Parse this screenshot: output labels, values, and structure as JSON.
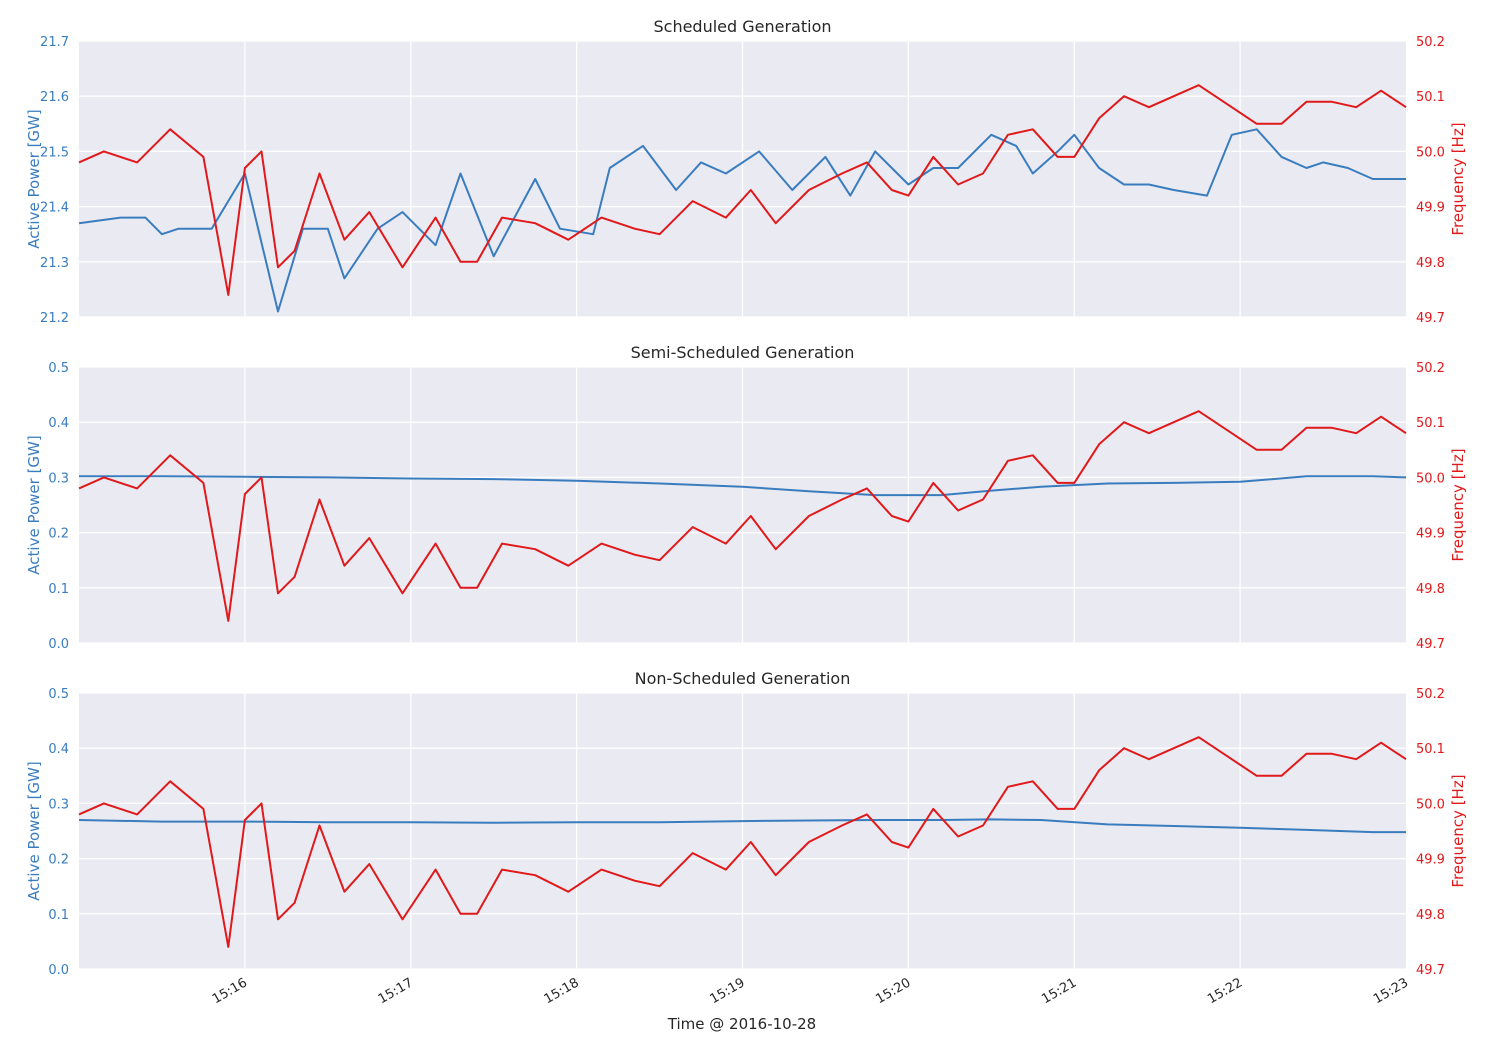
{
  "colors": {
    "power": "#3a7dbf",
    "frequency": "#e0191b",
    "plot_bg": "#eaeaf2",
    "grid": "#ffffff",
    "text": "#262626"
  },
  "xlabel": "Time @ 2016-10-28",
  "x_ticks": [
    "15:16",
    "15:17",
    "15:18",
    "15:19",
    "15:20",
    "15:21",
    "15:22",
    "15:23"
  ],
  "chart_data": [
    {
      "type": "line",
      "title": "Scheduled Generation",
      "ylabel": "Active Power [GW]",
      "y2label": "Frequency [Hz]",
      "ylim": [
        21.2,
        21.7
      ],
      "y2lim": [
        49.7,
        50.2
      ],
      "y_ticks": [
        "21.2",
        "21.3",
        "21.4",
        "21.5",
        "21.6",
        "21.7"
      ],
      "y2_ticks": [
        "49.7",
        "49.8",
        "49.9",
        "50.0",
        "50.1",
        "50.2"
      ],
      "x_range_minutes": [
        0,
        8
      ],
      "grid": true,
      "series": [
        {
          "axis": "left",
          "x": [
            0.0,
            0.25,
            0.4,
            0.5,
            0.6,
            0.8,
            1.0,
            1.2,
            1.35,
            1.5,
            1.6,
            1.8,
            1.95,
            2.15,
            2.3,
            2.5,
            2.75,
            2.9,
            3.1,
            3.2,
            3.4,
            3.6,
            3.75,
            3.9,
            4.1,
            4.3,
            4.5,
            4.65,
            4.8,
            5.0,
            5.15,
            5.3,
            5.5,
            5.65,
            5.75,
            5.9,
            6.0,
            6.15,
            6.3,
            6.45,
            6.6,
            6.8,
            6.95,
            7.1,
            7.25,
            7.4,
            7.5,
            7.65,
            7.8,
            7.95,
            8.0
          ],
          "values": [
            21.37,
            21.38,
            21.38,
            21.35,
            21.36,
            21.36,
            21.46,
            21.21,
            21.36,
            21.36,
            21.27,
            21.36,
            21.39,
            21.33,
            21.46,
            21.31,
            21.45,
            21.36,
            21.35,
            21.47,
            21.51,
            21.43,
            21.48,
            21.46,
            21.5,
            21.43,
            21.49,
            21.42,
            21.5,
            21.44,
            21.47,
            21.47,
            21.53,
            21.51,
            21.46,
            21.5,
            21.53,
            21.47,
            21.44,
            21.44,
            21.43,
            21.42,
            21.53,
            21.54,
            21.49,
            21.47,
            21.48,
            21.47,
            21.45,
            21.45,
            21.45
          ]
        },
        {
          "axis": "right",
          "x": [
            0.0,
            0.15,
            0.35,
            0.55,
            0.75,
            0.9,
            1.0,
            1.1,
            1.2,
            1.3,
            1.45,
            1.6,
            1.75,
            1.95,
            2.15,
            2.3,
            2.4,
            2.55,
            2.75,
            2.95,
            3.15,
            3.35,
            3.5,
            3.7,
            3.9,
            4.05,
            4.2,
            4.4,
            4.6,
            4.75,
            4.9,
            5.0,
            5.15,
            5.3,
            5.45,
            5.6,
            5.75,
            5.9,
            6.0,
            6.15,
            6.3,
            6.45,
            6.6,
            6.75,
            6.9,
            7.1,
            7.25,
            7.4,
            7.55,
            7.7,
            7.85,
            8.0
          ],
          "values": [
            49.98,
            50.0,
            49.98,
            50.04,
            49.99,
            49.74,
            49.97,
            50.0,
            49.79,
            49.82,
            49.96,
            49.84,
            49.89,
            49.79,
            49.88,
            49.8,
            49.8,
            49.88,
            49.87,
            49.84,
            49.88,
            49.86,
            49.85,
            49.91,
            49.88,
            49.93,
            49.87,
            49.93,
            49.96,
            49.98,
            49.93,
            49.92,
            49.99,
            49.94,
            49.96,
            50.03,
            50.04,
            49.99,
            49.99,
            50.06,
            50.1,
            50.08,
            50.1,
            50.12,
            50.09,
            50.05,
            50.05,
            50.09,
            50.09,
            50.08,
            50.11,
            50.08
          ]
        }
      ]
    },
    {
      "type": "line",
      "title": "Semi-Scheduled Generation",
      "ylabel": "Active Power [GW]",
      "y2label": "Frequency [Hz]",
      "ylim": [
        0.0,
        0.5
      ],
      "y2lim": [
        49.7,
        50.2
      ],
      "y_ticks": [
        "0.0",
        "0.1",
        "0.2",
        "0.3",
        "0.4",
        "0.5"
      ],
      "y2_ticks": [
        "49.7",
        "49.8",
        "49.9",
        "50.0",
        "50.1",
        "50.2"
      ],
      "x_range_minutes": [
        0,
        8
      ],
      "grid": true,
      "series": [
        {
          "axis": "left",
          "x": [
            0.0,
            0.5,
            1.0,
            1.5,
            2.0,
            2.5,
            3.0,
            3.5,
            4.0,
            4.4,
            4.8,
            5.2,
            5.5,
            5.8,
            6.2,
            6.6,
            7.0,
            7.4,
            7.8,
            8.0
          ],
          "values": [
            0.302,
            0.302,
            0.301,
            0.3,
            0.298,
            0.297,
            0.294,
            0.289,
            0.283,
            0.275,
            0.268,
            0.268,
            0.276,
            0.283,
            0.289,
            0.29,
            0.292,
            0.302,
            0.302,
            0.3
          ]
        },
        {
          "axis": "right",
          "x": [
            0.0,
            0.15,
            0.35,
            0.55,
            0.75,
            0.9,
            1.0,
            1.1,
            1.2,
            1.3,
            1.45,
            1.6,
            1.75,
            1.95,
            2.15,
            2.3,
            2.4,
            2.55,
            2.75,
            2.95,
            3.15,
            3.35,
            3.5,
            3.7,
            3.9,
            4.05,
            4.2,
            4.4,
            4.6,
            4.75,
            4.9,
            5.0,
            5.15,
            5.3,
            5.45,
            5.6,
            5.75,
            5.9,
            6.0,
            6.15,
            6.3,
            6.45,
            6.6,
            6.75,
            6.9,
            7.1,
            7.25,
            7.4,
            7.55,
            7.7,
            7.85,
            8.0
          ],
          "values": [
            49.98,
            50.0,
            49.98,
            50.04,
            49.99,
            49.74,
            49.97,
            50.0,
            49.79,
            49.82,
            49.96,
            49.84,
            49.89,
            49.79,
            49.88,
            49.8,
            49.8,
            49.88,
            49.87,
            49.84,
            49.88,
            49.86,
            49.85,
            49.91,
            49.88,
            49.93,
            49.87,
            49.93,
            49.96,
            49.98,
            49.93,
            49.92,
            49.99,
            49.94,
            49.96,
            50.03,
            50.04,
            49.99,
            49.99,
            50.06,
            50.1,
            50.08,
            50.1,
            50.12,
            50.09,
            50.05,
            50.05,
            50.09,
            50.09,
            50.08,
            50.11,
            50.08
          ]
        }
      ]
    },
    {
      "type": "line",
      "title": "Non-Scheduled Generation",
      "ylabel": "Active Power [GW]",
      "y2label": "Frequency [Hz]",
      "ylim": [
        0.0,
        0.5
      ],
      "y2lim": [
        49.7,
        50.2
      ],
      "y_ticks": [
        "0.0",
        "0.1",
        "0.2",
        "0.3",
        "0.4",
        "0.5"
      ],
      "y2_ticks": [
        "49.7",
        "49.8",
        "49.9",
        "50.0",
        "50.1",
        "50.2"
      ],
      "x_range_minutes": [
        0,
        8
      ],
      "grid": true,
      "series": [
        {
          "axis": "left",
          "x": [
            0.0,
            0.5,
            1.0,
            1.5,
            2.0,
            2.5,
            3.0,
            3.5,
            4.0,
            4.4,
            4.8,
            5.2,
            5.5,
            5.8,
            6.2,
            6.6,
            7.0,
            7.4,
            7.8,
            8.0
          ],
          "values": [
            0.27,
            0.267,
            0.267,
            0.266,
            0.266,
            0.265,
            0.266,
            0.266,
            0.268,
            0.269,
            0.27,
            0.27,
            0.271,
            0.27,
            0.262,
            0.259,
            0.256,
            0.252,
            0.248,
            0.248
          ]
        },
        {
          "axis": "right",
          "x": [
            0.0,
            0.15,
            0.35,
            0.55,
            0.75,
            0.9,
            1.0,
            1.1,
            1.2,
            1.3,
            1.45,
            1.6,
            1.75,
            1.95,
            2.15,
            2.3,
            2.4,
            2.55,
            2.75,
            2.95,
            3.15,
            3.35,
            3.5,
            3.7,
            3.9,
            4.05,
            4.2,
            4.4,
            4.6,
            4.75,
            4.9,
            5.0,
            5.15,
            5.3,
            5.45,
            5.6,
            5.75,
            5.9,
            6.0,
            6.15,
            6.3,
            6.45,
            6.6,
            6.75,
            6.9,
            7.1,
            7.25,
            7.4,
            7.55,
            7.7,
            7.85,
            8.0
          ],
          "values": [
            49.98,
            50.0,
            49.98,
            50.04,
            49.99,
            49.74,
            49.97,
            50.0,
            49.79,
            49.82,
            49.96,
            49.84,
            49.89,
            49.79,
            49.88,
            49.8,
            49.8,
            49.88,
            49.87,
            49.84,
            49.88,
            49.86,
            49.85,
            49.91,
            49.88,
            49.93,
            49.87,
            49.93,
            49.96,
            49.98,
            49.93,
            49.92,
            49.99,
            49.94,
            49.96,
            50.03,
            50.04,
            49.99,
            49.99,
            50.06,
            50.1,
            50.08,
            50.1,
            50.12,
            50.09,
            50.05,
            50.05,
            50.09,
            50.09,
            50.08,
            50.11,
            50.08
          ]
        }
      ]
    }
  ]
}
